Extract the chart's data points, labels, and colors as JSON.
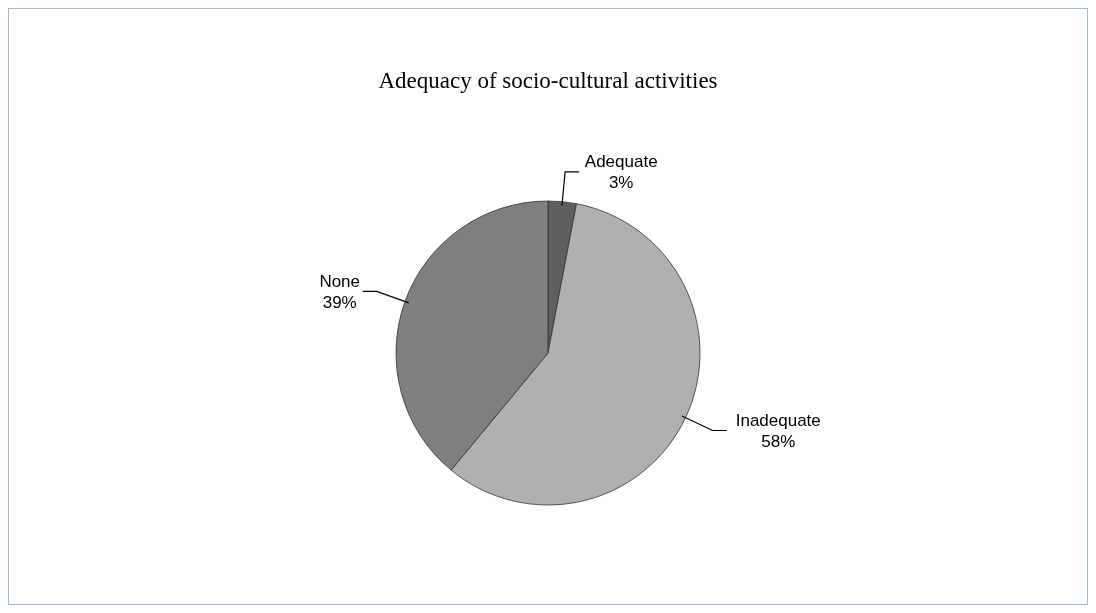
{
  "chart_data": {
    "type": "pie",
    "title": "Adequacy of socio-cultural activities",
    "categories": [
      "Adequate",
      "Inadequate",
      "None"
    ],
    "values": [
      3,
      58,
      39
    ],
    "colors": [
      "#5f5f5f",
      "#b0b0b0",
      "#7f7f7f"
    ],
    "value_labels": [
      "3%",
      "58%",
      "39%"
    ]
  }
}
